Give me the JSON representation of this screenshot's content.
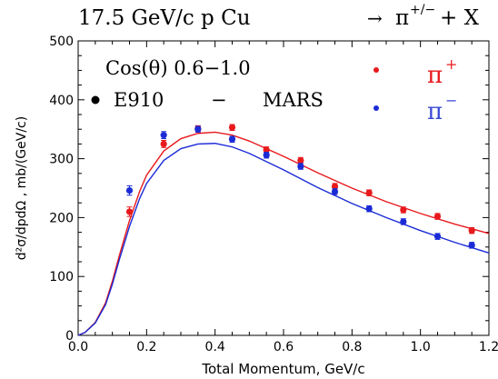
{
  "chart_data": {
    "type": "scatter",
    "title": "17.5 GeV/c p Cu",
    "title_reaction": {
      "arrow": "→",
      "pi": "π",
      "charge": "+/−",
      "suffix": "+ X"
    },
    "xlabel": "Total Momentum, GeV/c",
    "ylabel": "d²σ/dpdΩ , mb/(GeV/c)",
    "xlim": [
      0,
      1.2
    ],
    "ylim": [
      0,
      500
    ],
    "x_ticks": [
      {
        "value": 0,
        "label": "0.0"
      },
      {
        "value": 0.2,
        "label": "0.2"
      },
      {
        "value": 0.4,
        "label": "0.4"
      },
      {
        "value": 0.6,
        "label": "0.6"
      },
      {
        "value": 0.8,
        "label": "0.8"
      },
      {
        "value": 1.0,
        "label": "1.0"
      },
      {
        "value": 1.2,
        "label": "1.2"
      }
    ],
    "y_ticks": [
      {
        "value": 0,
        "label": "0"
      },
      {
        "value": 100,
        "label": "100"
      },
      {
        "value": 200,
        "label": "200"
      },
      {
        "value": 300,
        "label": "300"
      },
      {
        "value": 400,
        "label": "400"
      },
      {
        "value": 500,
        "label": "500"
      }
    ],
    "grid": false,
    "annotation": "Cos(θ) 0.6−1.0",
    "legend_placement": "top",
    "legend": {
      "data_label": "E910",
      "model_dash": "−",
      "model_label": "MARS",
      "series_symbol": "π",
      "plus_sign": "+",
      "minus_sign": "−"
    },
    "series": [
      {
        "name": "π+",
        "color": "#e8191c",
        "points": [
          {
            "x": 0.15,
            "y": 210,
            "err": 8
          },
          {
            "x": 0.25,
            "y": 325,
            "err": 6
          },
          {
            "x": 0.35,
            "y": 351,
            "err": 5
          },
          {
            "x": 0.45,
            "y": 353,
            "err": 5
          },
          {
            "x": 0.55,
            "y": 315,
            "err": 5
          },
          {
            "x": 0.65,
            "y": 297,
            "err": 5
          },
          {
            "x": 0.75,
            "y": 253,
            "err": 5
          },
          {
            "x": 0.85,
            "y": 242,
            "err": 5
          },
          {
            "x": 0.95,
            "y": 213,
            "err": 5
          },
          {
            "x": 1.05,
            "y": 202,
            "err": 5
          },
          {
            "x": 1.15,
            "y": 178,
            "err": 5
          }
        ],
        "model": [
          {
            "x": 0.0,
            "y": 0
          },
          {
            "x": 0.02,
            "y": 5
          },
          {
            "x": 0.05,
            "y": 22
          },
          {
            "x": 0.08,
            "y": 55
          },
          {
            "x": 0.1,
            "y": 92
          },
          {
            "x": 0.12,
            "y": 135
          },
          {
            "x": 0.15,
            "y": 195
          },
          {
            "x": 0.18,
            "y": 245
          },
          {
            "x": 0.2,
            "y": 272
          },
          {
            "x": 0.25,
            "y": 313
          },
          {
            "x": 0.3,
            "y": 334
          },
          {
            "x": 0.35,
            "y": 343
          },
          {
            "x": 0.4,
            "y": 345
          },
          {
            "x": 0.45,
            "y": 340
          },
          {
            "x": 0.5,
            "y": 330
          },
          {
            "x": 0.6,
            "y": 304
          },
          {
            "x": 0.7,
            "y": 276
          },
          {
            "x": 0.8,
            "y": 250
          },
          {
            "x": 0.9,
            "y": 227
          },
          {
            "x": 1.0,
            "y": 207
          },
          {
            "x": 1.1,
            "y": 189
          },
          {
            "x": 1.2,
            "y": 173
          }
        ]
      },
      {
        "name": "π−",
        "color": "#1a2bd6",
        "points": [
          {
            "x": 0.15,
            "y": 246,
            "err": 8
          },
          {
            "x": 0.25,
            "y": 340,
            "err": 6
          },
          {
            "x": 0.35,
            "y": 350,
            "err": 5
          },
          {
            "x": 0.45,
            "y": 333,
            "err": 5
          },
          {
            "x": 0.55,
            "y": 306,
            "err": 5
          },
          {
            "x": 0.65,
            "y": 287,
            "err": 5
          },
          {
            "x": 0.75,
            "y": 244,
            "err": 5
          },
          {
            "x": 0.85,
            "y": 215,
            "err": 5
          },
          {
            "x": 0.95,
            "y": 193,
            "err": 5
          },
          {
            "x": 1.05,
            "y": 168,
            "err": 5
          },
          {
            "x": 1.15,
            "y": 153,
            "err": 5
          }
        ],
        "model": [
          {
            "x": 0.0,
            "y": 0
          },
          {
            "x": 0.02,
            "y": 5
          },
          {
            "x": 0.05,
            "y": 21
          },
          {
            "x": 0.08,
            "y": 52
          },
          {
            "x": 0.1,
            "y": 87
          },
          {
            "x": 0.12,
            "y": 128
          },
          {
            "x": 0.15,
            "y": 185
          },
          {
            "x": 0.18,
            "y": 233
          },
          {
            "x": 0.2,
            "y": 258
          },
          {
            "x": 0.25,
            "y": 297
          },
          {
            "x": 0.3,
            "y": 317
          },
          {
            "x": 0.35,
            "y": 325
          },
          {
            "x": 0.4,
            "y": 326
          },
          {
            "x": 0.45,
            "y": 320
          },
          {
            "x": 0.5,
            "y": 309
          },
          {
            "x": 0.6,
            "y": 281
          },
          {
            "x": 0.7,
            "y": 251
          },
          {
            "x": 0.8,
            "y": 224
          },
          {
            "x": 0.9,
            "y": 200
          },
          {
            "x": 1.0,
            "y": 178
          },
          {
            "x": 1.1,
            "y": 158
          },
          {
            "x": 1.2,
            "y": 140
          }
        ]
      }
    ]
  }
}
